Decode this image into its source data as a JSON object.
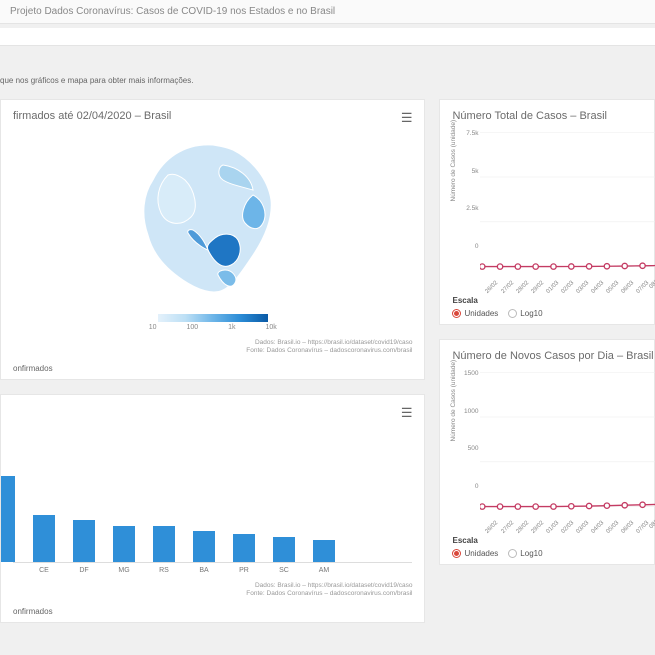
{
  "page": {
    "title": "Projeto Dados Coronavírus: Casos de COVID-19 nos Estados e no Brasil",
    "hint": "que nos gráficos e mapa para obter mais informações."
  },
  "map_card": {
    "title": "firmados até 02/04/2020 – Brasil",
    "legend_ticks": [
      "10",
      "100",
      "1k",
      "10k"
    ],
    "source1": "Dados: Brasil.io – https://brasil.io/dataset/covid19/caso",
    "source2": "Fonte: Dados Coronavírus – dadoscoronavirus.com/brasil",
    "footer": "onfirmados",
    "colors": [
      "#e4f1fb",
      "#bcdff5",
      "#6db5e8",
      "#2b8cd6",
      "#0a5aa6"
    ]
  },
  "bar_card": {
    "categories": [
      "CE",
      "DF",
      "MG",
      "RS",
      "BA",
      "PR",
      "SC",
      "AM"
    ],
    "values": [
      34,
      30,
      26,
      26,
      22,
      20,
      18,
      16
    ],
    "first_bar_value": 62,
    "bar_color": "#2f8fd8",
    "source1": "Dados: Brasil.io – https://brasil.io/dataset/covid19/caso",
    "source2": "Fonte: Dados Coronavírus – dadoscoronavirus.com/brasil",
    "footer": "onfirmados"
  },
  "total_chart": {
    "title": "Número Total de Casos – Brasil",
    "ylabel": "Número de Casos (unidade)",
    "yticks": [
      "7.5k",
      "5k",
      "2.5k",
      "0"
    ],
    "ylim": [
      0,
      7500
    ],
    "xticks": [
      "26/02",
      "27/02",
      "28/02",
      "29/02",
      "01/03",
      "02/03",
      "03/03",
      "04/03",
      "05/03",
      "06/03",
      "07/03",
      "08/"
    ],
    "values": [
      0,
      0,
      0,
      0,
      0,
      5,
      10,
      18,
      30,
      45,
      60,
      80
    ],
    "line_color": "#c43b63",
    "marker_color": "#c43b63",
    "marker_fill": "#ffffff",
    "grid_color": "#eeeeee",
    "escala_label": "Escala",
    "radio_unidades": "Unidades",
    "radio_log": "Log10",
    "selected": "unidades"
  },
  "novos_chart": {
    "title": "Número de Novos Casos por Dia – Brasil",
    "ylabel": "Número de Casos (unidade)",
    "yticks": [
      "1500",
      "1000",
      "500",
      "0"
    ],
    "ylim": [
      0,
      1500
    ],
    "xticks": [
      "26/02",
      "27/02",
      "28/02",
      "29/02",
      "01/03",
      "02/03",
      "03/03",
      "04/03",
      "05/03",
      "06/03",
      "07/03",
      "08/"
    ],
    "values": [
      0,
      0,
      0,
      0,
      0,
      3,
      6,
      10,
      15,
      20,
      25,
      35
    ],
    "line_color": "#c43b63",
    "marker_color": "#c43b63",
    "marker_fill": "#ffffff",
    "grid_color": "#eeeeee",
    "escala_label": "Escala",
    "radio_unidades": "Unidades",
    "radio_log": "Log10",
    "selected": "unidades"
  }
}
